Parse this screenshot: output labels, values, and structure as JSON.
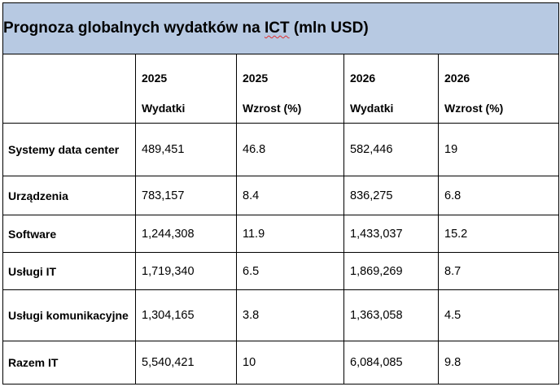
{
  "table": {
    "title_prefix": "Prognoza globalnych wydatków na ",
    "title_ict": "ICT",
    "title_suffix": " (mln USD)",
    "columns": [
      {
        "year": "",
        "metric": ""
      },
      {
        "year": "2025",
        "metric": "Wydatki"
      },
      {
        "year": "2025",
        "metric": "Wzrost (%)"
      },
      {
        "year": "2026",
        "metric": "Wydatki"
      },
      {
        "year": "2026",
        "metric": "Wzrost (%)"
      }
    ],
    "rows": [
      {
        "label": "Systemy data center",
        "values": [
          "489,451",
          "46.8",
          "582,446",
          "19"
        ]
      },
      {
        "label": "Urządzenia",
        "values": [
          "783,157",
          "8.4",
          "836,275",
          "6.8"
        ]
      },
      {
        "label": "Software",
        "values": [
          "1,244,308",
          "11.9",
          "1,433,037",
          "15.2"
        ]
      },
      {
        "label": "Usługi IT",
        "values": [
          "1,719,340",
          "6.5",
          "1,869,269",
          "8.7"
        ]
      },
      {
        "label": "Usługi komunikacyjne",
        "values": [
          "1,304,165",
          "3.8",
          "1,363,058",
          "4.5"
        ]
      },
      {
        "label": "Razem IT",
        "values": [
          "5,540,421",
          "10",
          "6,084,085",
          "9.8"
        ]
      }
    ]
  }
}
